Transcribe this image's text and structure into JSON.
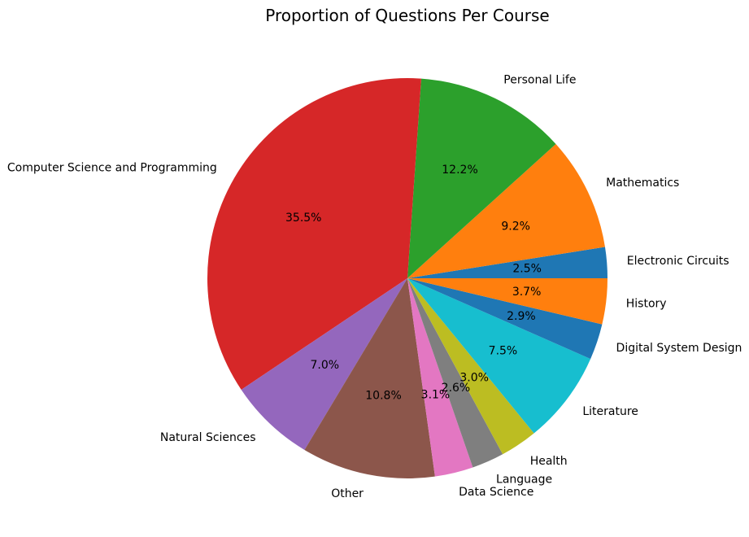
{
  "chart_data": {
    "type": "pie",
    "title": "Proportion of Questions Per Course",
    "start_angle_deg": 0,
    "direction": "counterclockwise",
    "slices": [
      {
        "label": "Electronic Circuits",
        "value": 2.5,
        "pct_label": "2.5%",
        "color": "#1f77b4"
      },
      {
        "label": "Mathematics",
        "value": 9.2,
        "pct_label": "9.2%",
        "color": "#ff7f0e"
      },
      {
        "label": "Personal Life",
        "value": 12.2,
        "pct_label": "12.2%",
        "color": "#2ca02c"
      },
      {
        "label": "Computer Science and Programming",
        "value": 35.5,
        "pct_label": "35.5%",
        "color": "#d62728"
      },
      {
        "label": "Natural Sciences",
        "value": 7.0,
        "pct_label": "7.0%",
        "color": "#9467bd"
      },
      {
        "label": "Other",
        "value": 10.8,
        "pct_label": "10.8%",
        "color": "#8c564b"
      },
      {
        "label": "Data Science",
        "value": 3.1,
        "pct_label": "3.1%",
        "color": "#e377c2"
      },
      {
        "label": "Language",
        "value": 2.6,
        "pct_label": "2.6%",
        "color": "#7f7f7f"
      },
      {
        "label": "Health",
        "value": 3.0,
        "pct_label": "3.0%",
        "color": "#bcbd22"
      },
      {
        "label": "Literature",
        "value": 7.5,
        "pct_label": "7.5%",
        "color": "#17becf"
      },
      {
        "label": "Digital System Design",
        "value": 2.9,
        "pct_label": "2.9%",
        "color": "#1f77b4"
      },
      {
        "label": "History",
        "value": 3.7,
        "pct_label": "3.7%",
        "color": "#ff7f0e"
      }
    ]
  }
}
